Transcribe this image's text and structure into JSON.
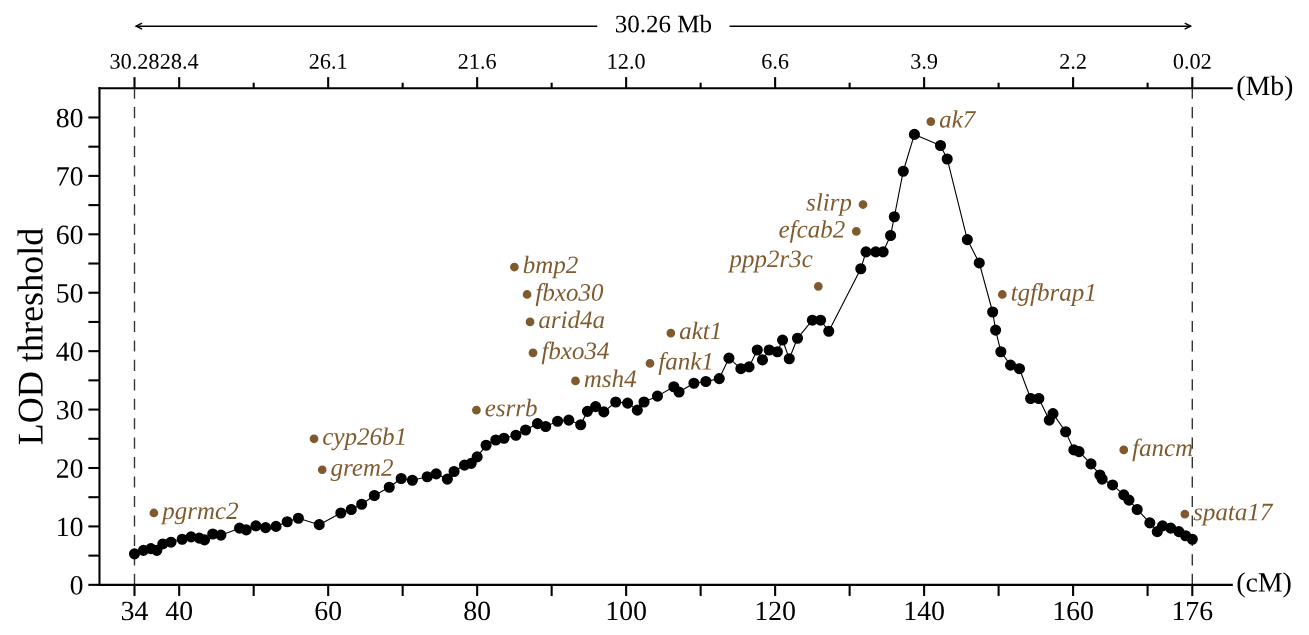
{
  "chart_data": {
    "type": "line",
    "xlabel": "(cM)",
    "x2label": "(Mb)",
    "ylabel": "LOD threshold",
    "xlim": [
      29.3,
      181.3
    ],
    "ylim": [
      0,
      85
    ],
    "xticks": [
      34,
      40,
      {
        "value": 50,
        "label": null
      },
      60,
      {
        "value": 70,
        "label": null
      },
      80,
      {
        "value": 90,
        "label": null
      },
      100,
      {
        "value": 110,
        "label": null
      },
      120,
      {
        "value": 130,
        "label": null
      },
      140,
      {
        "value": 150,
        "label": null
      },
      160,
      {
        "value": 170,
        "label": null
      },
      176
    ],
    "yticks": [
      0,
      {
        "value": 5,
        "label": null
      },
      10,
      {
        "value": 15,
        "label": null
      },
      20,
      {
        "value": 25,
        "label": null
      },
      30,
      {
        "value": 35,
        "label": null
      },
      40,
      {
        "value": 45,
        "label": null
      },
      50,
      {
        "value": 55,
        "label": null
      },
      60,
      {
        "value": 65,
        "label": null
      },
      70,
      {
        "value": 75,
        "label": null
      },
      80
    ],
    "grid": false,
    "legend": false,
    "marker": "circle",
    "line_style": "solid",
    "ref_lines": [
      {
        "axis": "x",
        "value": 34,
        "label": null,
        "color": "#333333",
        "line_style": "dashed"
      },
      {
        "axis": "x",
        "value": 176,
        "label": null,
        "color": "#333333",
        "line_style": "dashed"
      }
    ],
    "series": [
      {
        "color": "#000000",
        "x": [
          34.0,
          35.2,
          36.2,
          37.0,
          37.8,
          38.9,
          40.4,
          41.6,
          42.7,
          43.4,
          44.5,
          45.6,
          48.1,
          49.0,
          50.3,
          51.6,
          53.0,
          54.5,
          56.0,
          58.8,
          61.7,
          63.1,
          64.5,
          66.2,
          68.2,
          69.8,
          71.3,
          73.3,
          74.5,
          76.0,
          76.9,
          78.3,
          79.2,
          80.0,
          81.2,
          82.5,
          83.6,
          85.2,
          86.5,
          88.1,
          89.2,
          90.8,
          92.3,
          93.9,
          94.8,
          95.9,
          97.0,
          98.6,
          100.2,
          101.5,
          102.4,
          104.2,
          106.4,
          107.1,
          109.1,
          110.7,
          112.5,
          113.8,
          115.4,
          116.5,
          117.6,
          118.3,
          119.2,
          120.3,
          121.0,
          121.9,
          123.0,
          125.0,
          126.1,
          127.2,
          131.5,
          132.2,
          133.5,
          134.5,
          135.5,
          136.0,
          137.2,
          138.7,
          142.2,
          143.1,
          145.8,
          147.4,
          149.2,
          149.6,
          150.3,
          151.6,
          152.8,
          154.3,
          155.4,
          156.8,
          157.3,
          159.0,
          160.1,
          160.8,
          162.4,
          163.6,
          163.9,
          165.3,
          166.8,
          167.5,
          168.6,
          170.3,
          171.3,
          172.0,
          173.1,
          174.2,
          175.1,
          176.0
        ],
        "values": [
          5.3,
          5.9,
          6.2,
          5.9,
          7.0,
          7.3,
          7.8,
          8.2,
          8.0,
          7.7,
          8.7,
          8.5,
          9.7,
          9.4,
          10.1,
          9.8,
          10.0,
          10.8,
          11.4,
          10.3,
          12.3,
          12.9,
          13.8,
          15.3,
          16.7,
          18.2,
          17.9,
          18.5,
          19.0,
          18.1,
          19.4,
          20.5,
          20.8,
          21.9,
          23.9,
          24.8,
          25.1,
          25.6,
          26.5,
          27.6,
          27.1,
          28.0,
          28.2,
          27.4,
          29.7,
          30.5,
          29.6,
          31.3,
          31.1,
          29.9,
          31.3,
          32.3,
          33.9,
          33.0,
          34.5,
          34.8,
          35.3,
          38.8,
          37.0,
          37.3,
          40.2,
          38.5,
          40.2,
          39.9,
          41.9,
          38.7,
          42.2,
          45.3,
          45.3,
          43.4,
          54.1,
          57.0,
          57.0,
          57.0,
          59.8,
          63.0,
          70.8,
          77.1,
          75.2,
          72.9,
          59.1,
          55.1,
          46.7,
          43.6,
          39.9,
          37.6,
          37.0,
          31.9,
          31.9,
          28.2,
          29.3,
          26.2,
          23.1,
          22.8,
          20.7,
          18.8,
          18.1,
          17.1,
          15.4,
          14.5,
          12.9,
          10.6,
          9.1,
          10.1,
          9.7,
          9.1,
          8.4,
          7.8
        ]
      },
      {
        "type": "scatter",
        "color": "#7f5a2e",
        "x": [
          36.6,
          58.1,
          59.2,
          79.9,
          85.0,
          86.7,
          87.1,
          87.5,
          93.2,
          103.2,
          106.0,
          125.8,
          130.9,
          131.8,
          140.9,
          150.5,
          166.8,
          175.0
        ],
        "values": [
          12.3,
          25.0,
          19.7,
          29.9,
          54.4,
          49.7,
          45.0,
          39.7,
          34.9,
          37.9,
          43.1,
          51.1,
          60.5,
          65.1,
          79.3,
          49.7,
          23.1,
          12.1
        ]
      }
    ],
    "annotations": [
      "30.26 Mb",
      "30.28",
      "28.4",
      "26.1",
      "21.6",
      "12.0",
      "6.6",
      "3.9",
      "2.2",
      "0.02",
      {
        "text": "pgrmc2",
        "x": 36.6,
        "y": 12.3
      },
      {
        "text": "cyp26b1",
        "x": 58.1,
        "y": 25.0
      },
      {
        "text": "grem2",
        "x": 59.2,
        "y": 19.7
      },
      {
        "text": "esrrb",
        "x": 79.9,
        "y": 29.9
      },
      {
        "text": "bmp2",
        "x": 85.0,
        "y": 54.4
      },
      {
        "text": "fbxo30",
        "x": 86.7,
        "y": 49.7
      },
      {
        "text": "arid4a",
        "x": 87.1,
        "y": 45.0
      },
      {
        "text": "fbxo34",
        "x": 87.5,
        "y": 39.7
      },
      {
        "text": "msh4",
        "x": 93.2,
        "y": 34.9
      },
      {
        "text": "fank1",
        "x": 103.2,
        "y": 37.9
      },
      {
        "text": "akt1",
        "x": 106.0,
        "y": 43.1
      },
      {
        "text": "ppp2r3c",
        "x": 125.8,
        "y": 51.1
      },
      {
        "text": "efcab2",
        "x": 130.9,
        "y": 60.5
      },
      {
        "text": "slirp",
        "x": 131.8,
        "y": 65.1
      },
      {
        "text": "ak7",
        "x": 140.9,
        "y": 79.3
      },
      {
        "text": "tgfbrap1",
        "x": 150.5,
        "y": 49.7
      },
      {
        "text": "fancm",
        "x": 166.8,
        "y": 23.1
      },
      {
        "text": "spata17",
        "x": 175.0,
        "y": 12.1
      }
    ]
  }
}
